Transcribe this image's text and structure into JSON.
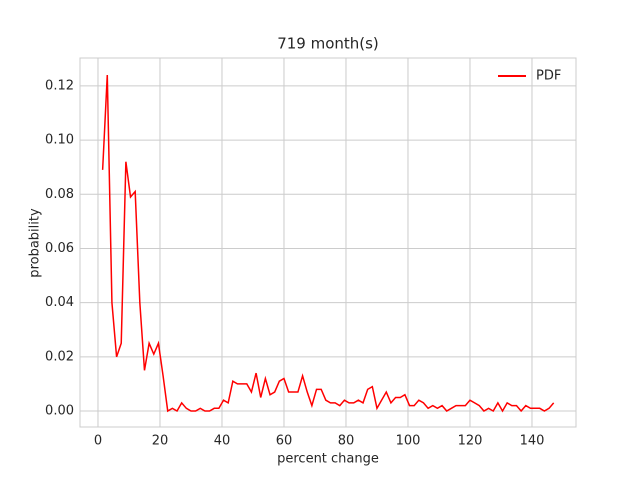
{
  "chart_data": {
    "type": "line",
    "title": "719 month(s)",
    "xlabel": "percent change",
    "ylabel": "probability",
    "x": [
      1.5,
      3,
      4.5,
      6,
      7.5,
      9,
      10.5,
      12,
      13.5,
      15,
      16.5,
      18,
      19.5,
      21,
      22.5,
      24,
      25.5,
      27,
      28.5,
      30,
      31.5,
      33,
      34.5,
      36,
      37.5,
      39,
      40.5,
      42,
      43.5,
      45,
      46.5,
      48,
      49.5,
      51,
      52.5,
      54,
      55.5,
      57,
      58.5,
      60,
      61.5,
      63,
      64.5,
      66,
      67.5,
      69,
      70.5,
      72,
      73.5,
      75,
      76.5,
      78,
      79.5,
      81,
      82.5,
      84,
      85.5,
      87,
      88.5,
      90,
      91.5,
      93,
      94.5,
      96,
      97.5,
      99,
      100.5,
      102,
      103.5,
      105,
      106.5,
      108,
      109.5,
      111,
      112.5,
      114,
      115.5,
      117,
      118.5,
      120,
      121.5,
      123,
      124.5,
      126,
      127.5,
      129,
      130.5,
      132,
      133.5,
      135,
      136.5,
      138,
      139.5,
      141,
      142.5,
      144,
      145.5,
      147
    ],
    "series": [
      {
        "name": "PDF",
        "color": "#ff0000",
        "values": [
          0.089,
          0.124,
          0.04,
          0.02,
          0.025,
          0.092,
          0.079,
          0.081,
          0.04,
          0.015,
          0.025,
          0.021,
          0.025,
          0.013,
          0.0,
          0.001,
          0.0,
          0.003,
          0.001,
          0.0,
          0.0,
          0.001,
          0.0,
          0.0,
          0.001,
          0.001,
          0.004,
          0.003,
          0.011,
          0.01,
          0.01,
          0.01,
          0.007,
          0.014,
          0.005,
          0.012,
          0.006,
          0.007,
          0.011,
          0.012,
          0.007,
          0.007,
          0.007,
          0.013,
          0.007,
          0.002,
          0.008,
          0.008,
          0.004,
          0.003,
          0.003,
          0.002,
          0.004,
          0.003,
          0.003,
          0.004,
          0.003,
          0.008,
          0.009,
          0.001,
          0.004,
          0.007,
          0.003,
          0.005,
          0.005,
          0.006,
          0.002,
          0.002,
          0.004,
          0.003,
          0.001,
          0.002,
          0.001,
          0.002,
          0.0,
          0.001,
          0.002,
          0.002,
          0.002,
          0.004,
          0.003,
          0.002,
          0.0,
          0.001,
          0.0,
          0.003,
          0.0,
          0.003,
          0.002,
          0.002,
          0.0,
          0.002,
          0.001,
          0.001,
          0.001,
          0.0,
          0.001,
          0.003
        ]
      }
    ],
    "xlim": [
      -5.8,
      154.2
    ],
    "xticks": [
      0,
      20,
      40,
      60,
      80,
      100,
      120,
      140
    ],
    "ylim": [
      -0.0059,
      0.1303
    ],
    "yticks": [
      {
        "value": 0,
        "label": "0.00"
      },
      {
        "value": 0.02,
        "label": "0.02"
      },
      {
        "value": 0.04,
        "label": "0.04"
      },
      {
        "value": 0.06,
        "label": "0.06"
      },
      {
        "value": 0.08,
        "label": "0.08"
      },
      {
        "value": 0.1,
        "label": "0.10"
      },
      {
        "value": 0.12,
        "label": "0.12"
      }
    ],
    "grid": true,
    "legend": "upper right"
  }
}
